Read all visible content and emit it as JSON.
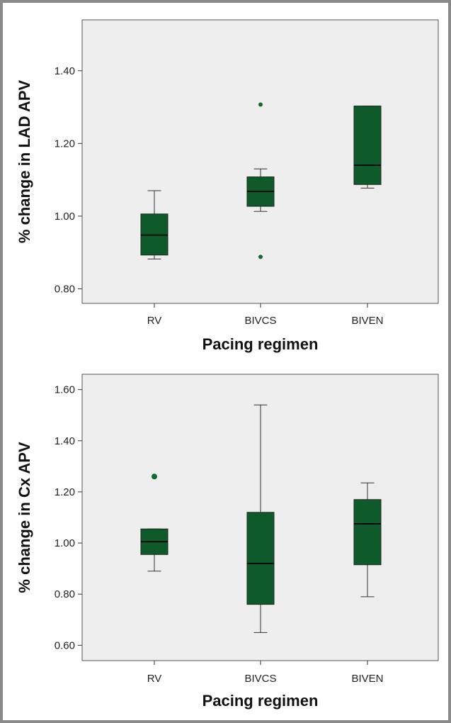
{
  "colors": {
    "box_fill": "#0f5a2a",
    "box_stroke": "#1e2a1e",
    "median": "#0a0a0a",
    "outlier": "#0f6a2f",
    "plot_background": "#eeeeee"
  },
  "chart_data": [
    {
      "type": "box",
      "xlabel": "Pacing regimen",
      "ylabel": "% change in LAD APV",
      "ylim": [
        0.76,
        1.54
      ],
      "yticks": [
        0.8,
        1.0,
        1.2,
        1.4
      ],
      "ytick_labels": [
        "0.80",
        "1.00",
        "1.20",
        "1.40"
      ],
      "categories": [
        "RV",
        "BIVCS",
        "BIVEN"
      ],
      "boxes": [
        {
          "category": "RV",
          "whisker_low": 0.882,
          "q1": 0.893,
          "median": 0.948,
          "q3": 1.006,
          "whisker_high": 1.07,
          "outliers": []
        },
        {
          "category": "BIVCS",
          "whisker_low": 1.013,
          "q1": 1.027,
          "median": 1.068,
          "q3": 1.108,
          "whisker_high": 1.13,
          "outliers": [
            0.888,
            1.307
          ]
        },
        {
          "category": "BIVEN",
          "whisker_low": 1.077,
          "q1": 1.087,
          "median": 1.14,
          "q3": 1.303,
          "whisker_high": 1.303,
          "outliers": []
        }
      ]
    },
    {
      "type": "box",
      "xlabel": "Pacing regimen",
      "ylabel": "% change in Cx APV",
      "ylim": [
        0.54,
        1.66
      ],
      "yticks": [
        0.6,
        0.8,
        1.0,
        1.2,
        1.4,
        1.6
      ],
      "ytick_labels": [
        "0.60",
        "0.80",
        "1.00",
        "1.20",
        "1.40",
        "1.60"
      ],
      "categories": [
        "RV",
        "BIVCS",
        "BIVEN"
      ],
      "boxes": [
        {
          "category": "RV",
          "whisker_low": 0.89,
          "q1": 0.955,
          "median": 1.005,
          "q3": 1.055,
          "whisker_high": 1.055,
          "outliers": [
            1.26
          ]
        },
        {
          "category": "BIVCS",
          "whisker_low": 0.65,
          "q1": 0.76,
          "median": 0.92,
          "q3": 1.12,
          "whisker_high": 1.54,
          "outliers": []
        },
        {
          "category": "BIVEN",
          "whisker_low": 0.79,
          "q1": 0.915,
          "median": 1.075,
          "q3": 1.17,
          "whisker_high": 1.235,
          "outliers": []
        }
      ]
    }
  ]
}
